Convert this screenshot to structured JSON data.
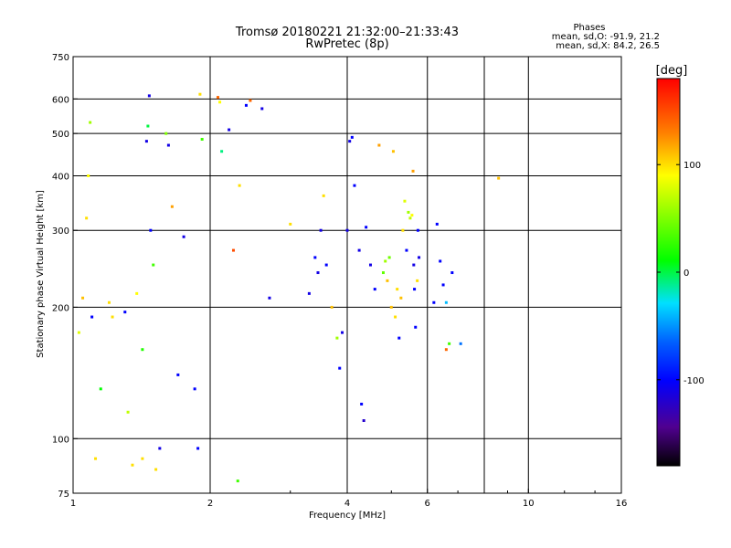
{
  "chart_data": {
    "type": "scatter",
    "title": "Tromsø 20180221 21:32:00–21:33:43",
    "subtitle": "RwPretec (8p)",
    "xlabel": "Frequency [MHz]",
    "ylabel": "Stationary phase Virtual Height [km]",
    "x_scale": "log",
    "y_scale": "log",
    "xlim": [
      1,
      16
    ],
    "ylim": [
      75,
      750
    ],
    "x_ticks": [
      1,
      2,
      4,
      6,
      10,
      16
    ],
    "x_tick_labels": [
      "1",
      "2",
      "4",
      "6",
      "10",
      "16"
    ],
    "x_gridlines": [
      2,
      4,
      6,
      8,
      10
    ],
    "y_ticks": [
      75,
      100,
      200,
      300,
      400,
      500,
      600,
      750
    ],
    "y_tick_labels": [
      "75",
      "100",
      "200",
      "300",
      "400",
      "500",
      "600",
      "750"
    ],
    "y_gridlines": [
      100,
      200,
      300,
      400,
      500,
      600
    ],
    "grid": true,
    "legend_title": "Phases",
    "legend_lines": [
      "mean, sd,O: -91.9, 21.2",
      "mean, sd,X: 84.2, 26.5"
    ],
    "colorbar": {
      "label": "[deg]",
      "range": [
        -180,
        180
      ],
      "ticks": [
        100,
        0,
        -100
      ],
      "tick_labels": [
        "100",
        "0",
        "-100"
      ]
    },
    "series": [
      {
        "name": "echoes",
        "note": "points: [frequency MHz, virtual height km, phase deg]",
        "points": [
          [
            1.03,
            175,
            80
          ],
          [
            1.05,
            210,
            110
          ],
          [
            1.07,
            320,
            100
          ],
          [
            1.09,
            530,
            60
          ],
          [
            1.1,
            190,
            -100
          ],
          [
            1.08,
            400,
            90
          ],
          [
            1.12,
            90,
            100
          ],
          [
            1.15,
            130,
            10
          ],
          [
            1.2,
            205,
            100
          ],
          [
            1.22,
            190,
            100
          ],
          [
            1.3,
            195,
            -100
          ],
          [
            1.32,
            115,
            70
          ],
          [
            1.35,
            87,
            100
          ],
          [
            1.38,
            215,
            90
          ],
          [
            1.42,
            160,
            20
          ],
          [
            1.45,
            480,
            -110
          ],
          [
            1.46,
            520,
            0
          ],
          [
            1.47,
            610,
            -110
          ],
          [
            1.48,
            300,
            -100
          ],
          [
            1.5,
            250,
            30
          ],
          [
            1.42,
            90,
            100
          ],
          [
            1.52,
            85,
            100
          ],
          [
            1.55,
            95,
            -110
          ],
          [
            1.6,
            500,
            50
          ],
          [
            1.62,
            470,
            -110
          ],
          [
            1.65,
            340,
            120
          ],
          [
            1.7,
            140,
            -100
          ],
          [
            1.75,
            290,
            -110
          ],
          [
            1.85,
            130,
            -100
          ],
          [
            1.88,
            95,
            -100
          ],
          [
            1.9,
            615,
            100
          ],
          [
            1.92,
            485,
            30
          ],
          [
            2.08,
            605,
            140
          ],
          [
            2.1,
            590,
            90
          ],
          [
            2.12,
            455,
            -10
          ],
          [
            2.2,
            510,
            -110
          ],
          [
            2.25,
            270,
            150
          ],
          [
            2.3,
            80,
            30
          ],
          [
            2.32,
            380,
            100
          ],
          [
            2.4,
            580,
            -100
          ],
          [
            2.45,
            595,
            140
          ],
          [
            2.6,
            570,
            -110
          ],
          [
            2.7,
            210,
            -110
          ],
          [
            3.0,
            310,
            100
          ],
          [
            3.3,
            215,
            -110
          ],
          [
            3.4,
            260,
            -100
          ],
          [
            3.45,
            240,
            -110
          ],
          [
            3.5,
            300,
            -110
          ],
          [
            3.55,
            360,
            100
          ],
          [
            3.6,
            250,
            -100
          ],
          [
            3.7,
            200,
            110
          ],
          [
            3.8,
            170,
            60
          ],
          [
            3.85,
            145,
            -100
          ],
          [
            3.9,
            175,
            -110
          ],
          [
            4.0,
            300,
            -110
          ],
          [
            4.05,
            480,
            -110
          ],
          [
            4.1,
            490,
            -100
          ],
          [
            4.15,
            380,
            -100
          ],
          [
            4.25,
            270,
            -110
          ],
          [
            4.3,
            120,
            -100
          ],
          [
            4.35,
            110,
            -120
          ],
          [
            4.4,
            305,
            -100
          ],
          [
            4.5,
            250,
            -110
          ],
          [
            4.6,
            220,
            -100
          ],
          [
            4.7,
            470,
            120
          ],
          [
            4.8,
            240,
            40
          ],
          [
            4.85,
            255,
            60
          ],
          [
            4.9,
            230,
            110
          ],
          [
            4.95,
            260,
            45
          ],
          [
            5.0,
            200,
            110
          ],
          [
            5.05,
            455,
            110
          ],
          [
            5.1,
            190,
            100
          ],
          [
            5.15,
            220,
            100
          ],
          [
            5.2,
            170,
            -100
          ],
          [
            5.25,
            210,
            110
          ],
          [
            5.3,
            300,
            100
          ],
          [
            5.35,
            350,
            80
          ],
          [
            5.4,
            270,
            -100
          ],
          [
            5.45,
            330,
            60
          ],
          [
            5.5,
            320,
            70
          ],
          [
            5.55,
            325,
            90
          ],
          [
            5.58,
            410,
            120
          ],
          [
            5.6,
            250,
            -110
          ],
          [
            5.62,
            220,
            -100
          ],
          [
            5.65,
            180,
            -100
          ],
          [
            5.7,
            230,
            100
          ],
          [
            5.72,
            300,
            -100
          ],
          [
            5.75,
            260,
            -110
          ],
          [
            6.2,
            205,
            -100
          ],
          [
            6.3,
            310,
            -100
          ],
          [
            6.4,
            255,
            -100
          ],
          [
            6.5,
            225,
            -100
          ],
          [
            6.6,
            160,
            140
          ],
          [
            6.8,
            240,
            -100
          ],
          [
            7.1,
            165,
            -60
          ],
          [
            8.6,
            395,
            110
          ],
          [
            6.6,
            205,
            -40
          ],
          [
            6.7,
            165,
            30
          ]
        ]
      }
    ]
  }
}
